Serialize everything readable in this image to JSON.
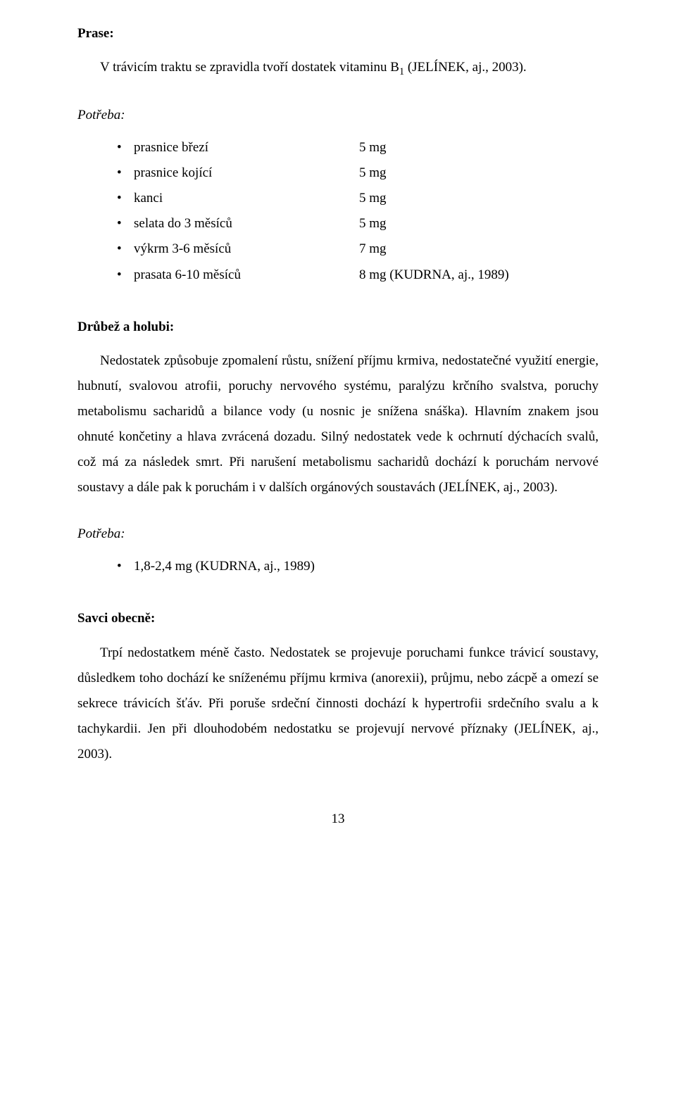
{
  "section1": {
    "heading": "Prase:",
    "para": "V trávicím traktu se zpravidla tvoří dostatek vitaminu B",
    "sub": "1",
    "para_tail": " (JELÍNEK, aj., 2003)."
  },
  "potreba1": {
    "heading": "Potřeba:",
    "items": [
      {
        "label": "prasnice březí",
        "value": "5 mg"
      },
      {
        "label": "prasnice kojící",
        "value": "5 mg"
      },
      {
        "label": "kanci",
        "value": "5 mg"
      },
      {
        "label": "selata do 3 měsíců",
        "value": "5 mg"
      },
      {
        "label": "výkrm 3-6 měsíců",
        "value": "7 mg"
      },
      {
        "label": "prasata 6-10 měsíců",
        "value": "8 mg (KUDRNA, aj., 1989)"
      }
    ]
  },
  "section2": {
    "heading": "Drůbež a holubi:",
    "para": "Nedostatek způsobuje zpomalení růstu, snížení příjmu krmiva, nedostatečné využití energie, hubnutí, svalovou atrofii, poruchy nervového systému, paralýzu krčního svalstva, poruchy metabolismu sacharidů a bilance vody (u nosnic je snížena snáška). Hlavním znakem jsou ohnuté končetiny a hlava zvrácená dozadu. Silný nedostatek vede k ochrnutí dýchacích svalů, což má za následek smrt. Při narušení metabolismu sacharidů dochází k poruchám nervové soustavy a dále pak k poruchám i v dalších orgánových soustavách (JELÍNEK, aj., 2003)."
  },
  "potreba2": {
    "heading": "Potřeba:",
    "items": [
      {
        "label": "1,8-2,4 mg (KUDRNA, aj., 1989)"
      }
    ]
  },
  "section3": {
    "heading": "Savci obecně:",
    "para": "Trpí nedostatkem méně často. Nedostatek se projevuje poruchami funkce trávicí soustavy, důsledkem toho dochází ke sníženému příjmu krmiva (anorexii), průjmu, nebo zácpě a omezí se sekrece trávicích šťáv. Při poruše srdeční činnosti dochází k hypertrofii srdečního svalu a k tachykardii. Jen při dlouhodobém nedostatku se projevují nervové příznaky (JELÍNEK, aj., 2003)."
  },
  "page_number": "13"
}
